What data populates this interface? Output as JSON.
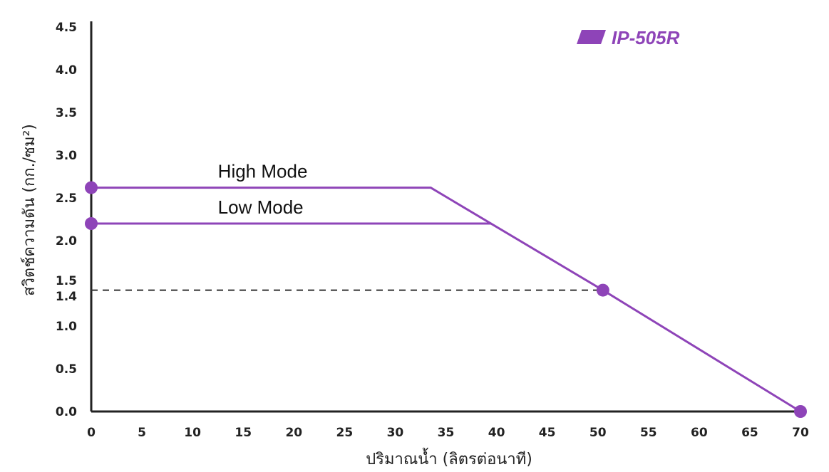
{
  "chart_data": {
    "type": "line",
    "xlabel": "ปริมาณน้ำ (ลิตรต่อนาที)",
    "ylabel": "สวิตช์ความดัน (กก./ซม²)",
    "xlim": [
      0,
      70
    ],
    "ylim": [
      0,
      4.5
    ],
    "x_ticks": [
      "0",
      "5",
      "10",
      "15",
      "20",
      "25",
      "30",
      "35",
      "40",
      "45",
      "50",
      "55",
      "60",
      "65",
      "70"
    ],
    "y_ticks": [
      {
        "label": "0.0",
        "value": 0.0
      },
      {
        "label": "0.5",
        "value": 0.5
      },
      {
        "label": "1.0",
        "value": 1.0
      },
      {
        "label": "1.4",
        "value": 1.4
      },
      {
        "label": "1.5",
        "value": 1.5
      },
      {
        "label": "2.0",
        "value": 2.0
      },
      {
        "label": "2.5",
        "value": 2.5
      },
      {
        "label": "3.0",
        "value": 3.0
      },
      {
        "label": "3.5",
        "value": 3.5
      },
      {
        "label": "4.0",
        "value": 4.0
      },
      {
        "label": "4.5",
        "value": 4.5
      }
    ],
    "legend": {
      "label": "IP-505R",
      "color": "#8e44b8",
      "position": "top-right"
    },
    "grid": false,
    "series": [
      {
        "name": "High Mode",
        "color": "#8e44b8",
        "points": [
          [
            0,
            2.62
          ],
          [
            33.5,
            2.62
          ],
          [
            50.5,
            1.42
          ],
          [
            70,
            0.0
          ]
        ],
        "markers": [
          [
            0,
            2.62
          ],
          [
            50.5,
            1.42
          ],
          [
            70,
            0.0
          ]
        ]
      },
      {
        "name": "Low Mode",
        "color": "#8e44b8",
        "points": [
          [
            0,
            2.2
          ],
          [
            39.5,
            2.2
          ]
        ],
        "markers": [
          [
            0,
            2.2
          ]
        ]
      }
    ],
    "reference_line": {
      "y": 1.42,
      "x_from": 0,
      "x_to": 50.5,
      "style": "dashed",
      "color": "#333333"
    }
  }
}
